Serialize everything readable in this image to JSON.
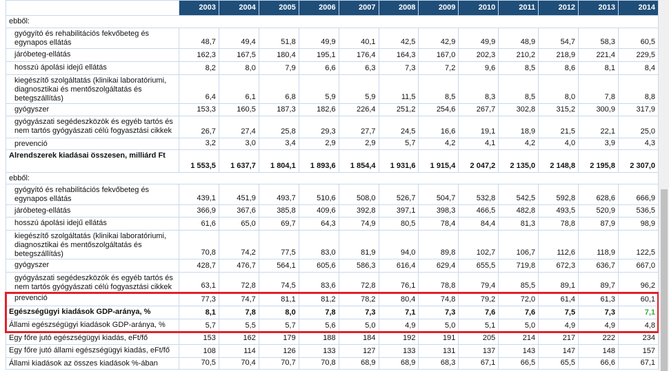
{
  "table": {
    "header": [
      "2003",
      "2004",
      "2005",
      "2006",
      "2007",
      "2008",
      "2009",
      "2010",
      "2011",
      "2012",
      "2013",
      "2014"
    ],
    "rows": [
      {
        "label": "ebből:"
      },
      {
        "label": "gyógyító és rehabilitációs fekvőbeteg és egynapos ellátás",
        "values": [
          "48,7",
          "49,4",
          "51,8",
          "49,9",
          "40,1",
          "42,5",
          "42,9",
          "49,9",
          "48,9",
          "54,7",
          "58,3",
          "60,5"
        ]
      },
      {
        "label": "járóbeteg-ellátás",
        "values": [
          "162,3",
          "167,5",
          "180,4",
          "195,1",
          "176,4",
          "164,3",
          "167,0",
          "202,3",
          "210,2",
          "218,9",
          "221,4",
          "229,5"
        ]
      },
      {
        "label": "hosszú ápolási idejű ellátás",
        "values": [
          "8,2",
          "8,0",
          "7,9",
          "6,6",
          "6,3",
          "7,3",
          "7,2",
          "9,6",
          "8,5",
          "8,6",
          "8,1",
          "8,4"
        ]
      },
      {
        "label": "kiegészítő szolgáltatás (klinikai laboratóriumi, diagnosztikai és mentőszolgáltatás és betegszállítás)",
        "values": [
          "6,4",
          "6,1",
          "6,8",
          "5,9",
          "5,9",
          "11,5",
          "8,5",
          "8,3",
          "8,5",
          "8,0",
          "7,8",
          "8,8"
        ]
      },
      {
        "label": "gyógyszer",
        "values": [
          "153,3",
          "160,5",
          "187,3",
          "182,6",
          "226,4",
          "251,2",
          "254,6",
          "267,7",
          "302,8",
          "315,2",
          "300,9",
          "317,9"
        ]
      },
      {
        "label": "gyógyászati segédeszközök és egyéb tartós és nem tartós gyógyászati célú fogyasztási cikkek",
        "values": [
          "26,7",
          "27,4",
          "25,8",
          "29,3",
          "27,7",
          "24,5",
          "16,6",
          "19,1",
          "18,9",
          "21,5",
          "22,1",
          "25,0"
        ]
      },
      {
        "label": "prevenció",
        "values": [
          "3,2",
          "3,0",
          "3,4",
          "2,9",
          "2,9",
          "5,7",
          "4,2",
          "4,1",
          "4,2",
          "4,0",
          "3,9",
          "4,3"
        ]
      },
      {
        "label": "Alrendszerek kiadásai összesen, milliárd Ft",
        "values": [
          "1 553,5",
          "1 637,7",
          "1 804,1",
          "1 893,6",
          "1 854,4",
          "1 931,6",
          "1 915,4",
          "2 047,2",
          "2 135,0",
          "2 148,8",
          "2 195,8",
          "2 307,0"
        ]
      },
      {
        "label": "ebből:"
      },
      {
        "label": "gyógyító és rehabilitációs fekvőbeteg és egynapos ellátás",
        "values": [
          "439,1",
          "451,9",
          "493,7",
          "510,6",
          "508,0",
          "526,7",
          "504,7",
          "532,8",
          "542,5",
          "592,8",
          "628,6",
          "666,9"
        ]
      },
      {
        "label": "járóbeteg-ellátás",
        "values": [
          "366,9",
          "367,6",
          "385,8",
          "409,6",
          "392,8",
          "397,1",
          "398,3",
          "466,5",
          "482,8",
          "493,5",
          "520,9",
          "536,5"
        ]
      },
      {
        "label": "hosszú ápolási idejű ellátás",
        "values": [
          "61,6",
          "65,0",
          "69,7",
          "64,3",
          "74,9",
          "80,5",
          "78,4",
          "84,4",
          "81,3",
          "78,8",
          "87,9",
          "98,9"
        ]
      },
      {
        "label": "kiegészítő szolgáltatás (klinikai laboratóriumi, diagnosztikai és mentőszolgáltatás és betegszállítás)",
        "values": [
          "70,8",
          "74,2",
          "77,5",
          "83,0",
          "81,9",
          "94,0",
          "89,8",
          "102,7",
          "106,7",
          "112,6",
          "118,9",
          "122,5"
        ]
      },
      {
        "label": "gyógyszer",
        "values": [
          "428,7",
          "476,7",
          "564,1",
          "605,6",
          "586,3",
          "616,4",
          "629,4",
          "655,5",
          "719,8",
          "672,3",
          "636,7",
          "667,0"
        ]
      },
      {
        "label": "gyógyászati segédeszközök és egyéb tartós és nem tartós gyógyászati célú fogyasztási cikkek",
        "values": [
          "63,1",
          "72,8",
          "74,5",
          "83,6",
          "72,8",
          "76,1",
          "78,8",
          "79,4",
          "85,5",
          "89,1",
          "89,7",
          "96,2"
        ]
      },
      {
        "label": "prevenció",
        "values": [
          "77,3",
          "74,7",
          "81,1",
          "81,2",
          "78,2",
          "80,4",
          "74,8",
          "79,2",
          "72,0",
          "61,4",
          "61,3",
          "60,1"
        ]
      },
      {
        "label": "Egészségügyi kiadások GDP-aránya, %",
        "values": [
          "8,1",
          "7,8",
          "8,0",
          "7,8",
          "7,3",
          "7,1",
          "7,3",
          "7,6",
          "7,6",
          "7,5",
          "7,3",
          "7,1"
        ]
      },
      {
        "label": "Állami egészségügyi kiadások GDP-aránya, %",
        "values": [
          "5,7",
          "5,5",
          "5,7",
          "5,6",
          "5,0",
          "4,9",
          "5,0",
          "5,1",
          "5,0",
          "4,9",
          "4,9",
          "4,8"
        ]
      },
      {
        "label": "Egy főre jutó egészségügyi kiadás, eFt/fő",
        "values": [
          "153",
          "162",
          "179",
          "188",
          "184",
          "192",
          "191",
          "205",
          "214",
          "217",
          "222",
          "234"
        ]
      },
      {
        "label": "Egy főre jutó állami egészségügyi kiadás, eFt/fő",
        "values": [
          "108",
          "114",
          "126",
          "133",
          "127",
          "133",
          "131",
          "137",
          "143",
          "147",
          "148",
          "157"
        ]
      },
      {
        "label": "Állami kiadások az összes kiadások %-ában",
        "values": [
          "70,5",
          "70,4",
          "70,7",
          "70,8",
          "68,9",
          "68,9",
          "68,3",
          "67,1",
          "66,5",
          "65,5",
          "66,6",
          "67,1"
        ]
      }
    ]
  }
}
